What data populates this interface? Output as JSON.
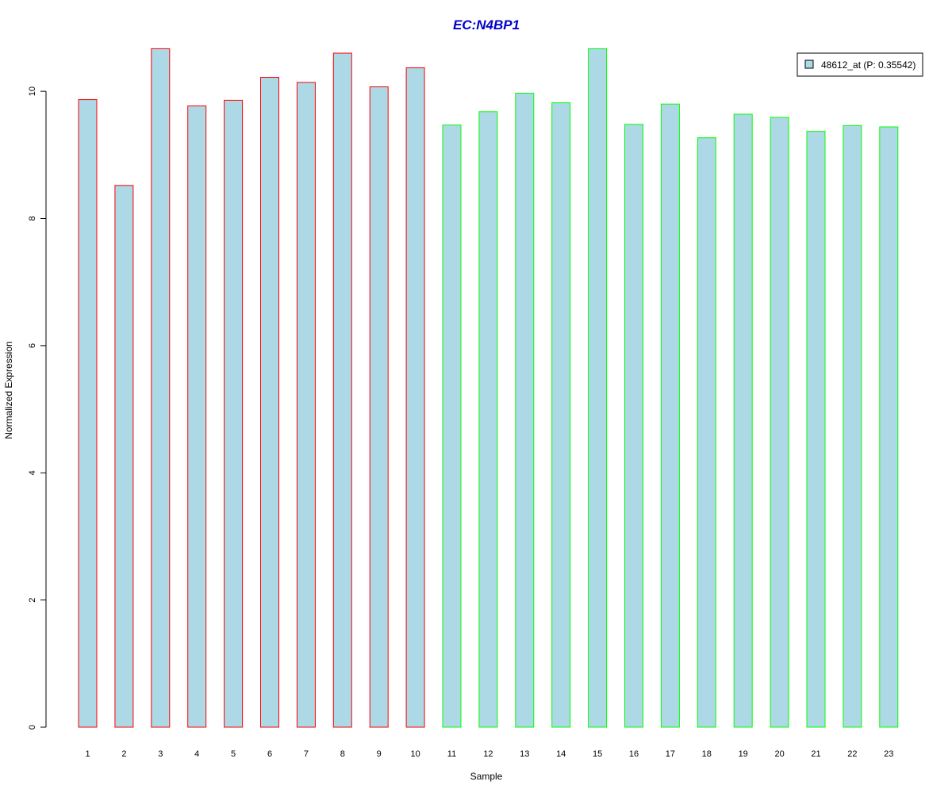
{
  "chart_data": {
    "type": "bar",
    "title": "EC:N4BP1",
    "xlabel": "Sample",
    "ylabel": "Normalized Expression",
    "categories": [
      "1",
      "2",
      "3",
      "4",
      "5",
      "6",
      "7",
      "8",
      "9",
      "10",
      "11",
      "12",
      "13",
      "14",
      "15",
      "16",
      "17",
      "18",
      "19",
      "20",
      "21",
      "22",
      "23"
    ],
    "values": [
      9.87,
      8.52,
      10.67,
      9.77,
      9.86,
      10.22,
      10.14,
      10.6,
      10.07,
      10.37,
      9.47,
      9.68,
      9.97,
      9.82,
      10.67,
      9.48,
      9.8,
      9.27,
      9.64,
      9.59,
      9.37,
      9.46,
      9.44
    ],
    "ylim": [
      0,
      10.7
    ],
    "yticks": [
      0,
      2,
      4,
      6,
      8,
      10
    ],
    "grid": false,
    "legend": {
      "placement": "top-right",
      "entries": [
        {
          "label": "48612_at (P: 0.35542)",
          "color": "#add8e6"
        }
      ]
    },
    "colors": {
      "bar_fill": "#add8e6",
      "group1_border": "#ff0000",
      "group2_border": "#00ff00",
      "title": "#0000cc"
    },
    "border_groups": [
      "group1",
      "group1",
      "group1",
      "group1",
      "group1",
      "group1",
      "group1",
      "group1",
      "group1",
      "group1",
      "group2",
      "group2",
      "group2",
      "group2",
      "group2",
      "group2",
      "group2",
      "group2",
      "group2",
      "group2",
      "group2",
      "group2",
      "group2"
    ]
  }
}
